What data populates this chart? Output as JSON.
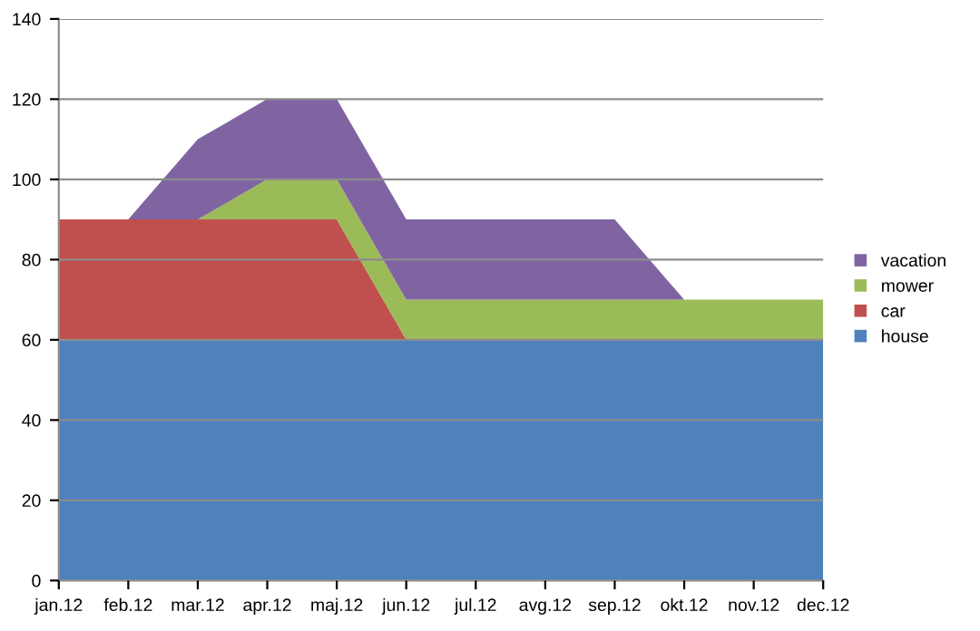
{
  "chart_data": {
    "type": "area",
    "stacked": true,
    "categories": [
      "jan.12",
      "feb.12",
      "mar.12",
      "apr.12",
      "maj.12",
      "jun.12",
      "jul.12",
      "avg.12",
      "sep.12",
      "okt.12",
      "nov.12",
      "dec.12"
    ],
    "series": [
      {
        "name": "house",
        "color": "#4f81bd",
        "values": [
          60,
          60,
          60,
          60,
          60,
          60,
          60,
          60,
          60,
          60,
          60,
          60
        ]
      },
      {
        "name": "car",
        "color": "#c0504d",
        "values": [
          30,
          30,
          30,
          30,
          30,
          0,
          0,
          0,
          0,
          0,
          0,
          0
        ]
      },
      {
        "name": "mower",
        "color": "#9bbb59",
        "values": [
          0,
          0,
          0,
          10,
          10,
          10,
          10,
          10,
          10,
          10,
          10,
          10
        ]
      },
      {
        "name": "vacation",
        "color": "#8064a2",
        "values": [
          0,
          0,
          20,
          20,
          20,
          20,
          20,
          20,
          20,
          0,
          0,
          0
        ]
      }
    ],
    "ylim": [
      0,
      140
    ],
    "yticks": [
      0,
      20,
      40,
      60,
      80,
      100,
      120,
      140
    ],
    "grid": "y",
    "legend": "right"
  }
}
